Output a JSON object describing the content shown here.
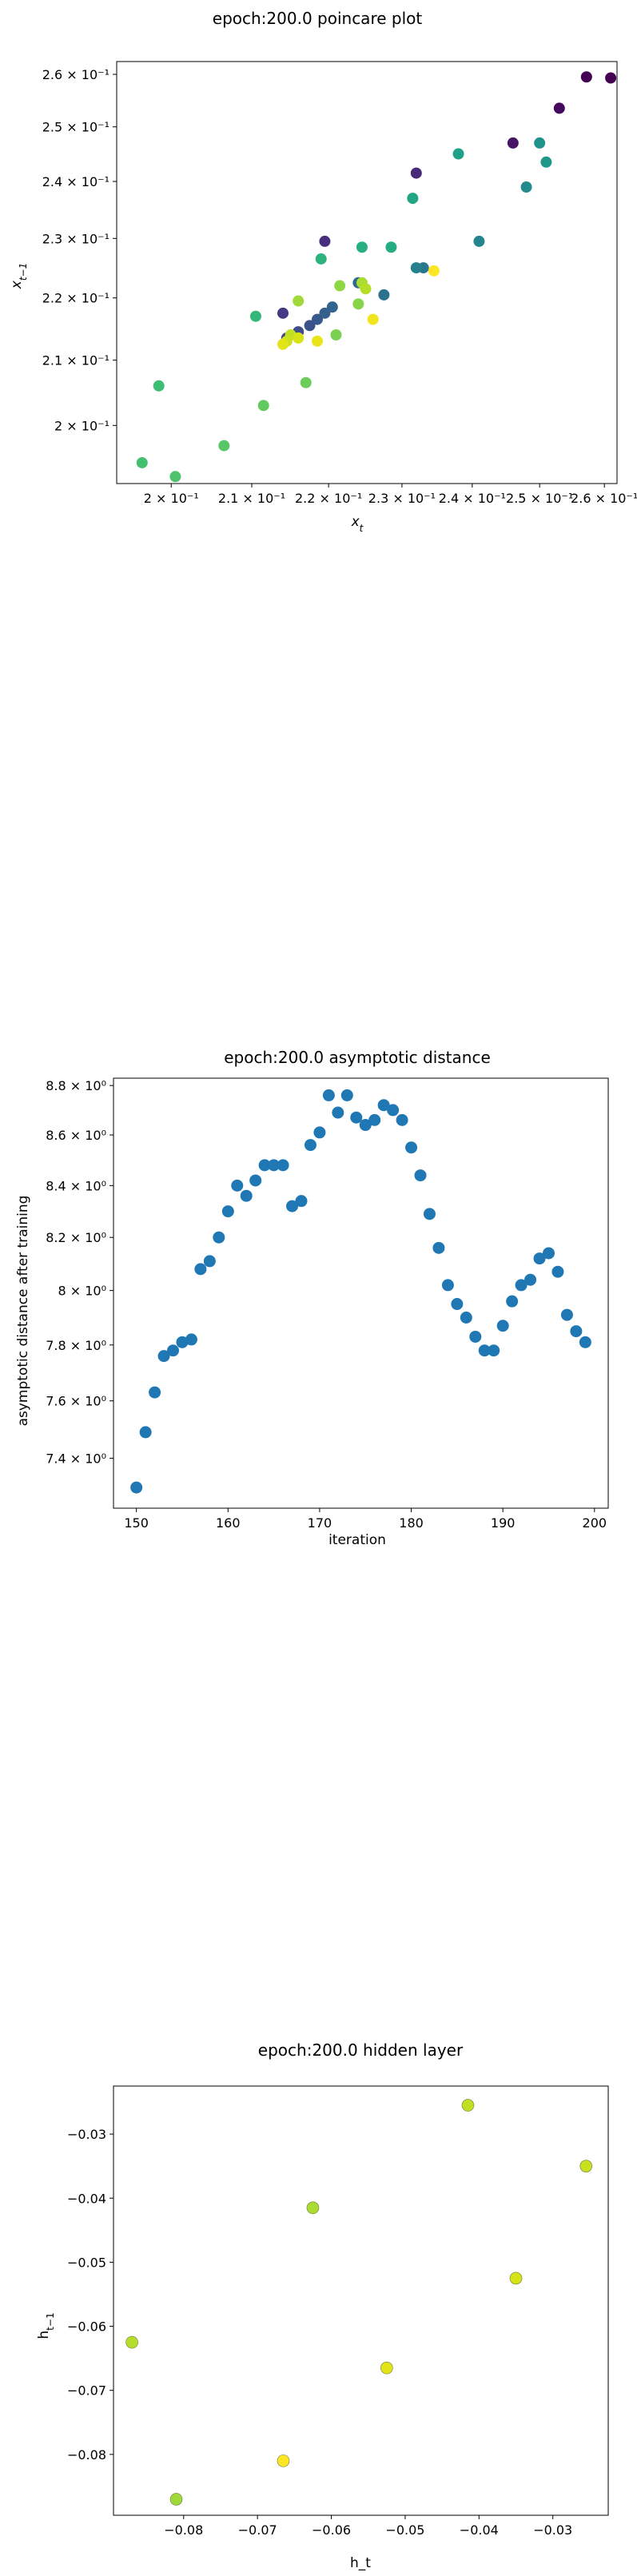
{
  "chart_data": [
    {
      "type": "scatter",
      "title": "epoch:200.0 poincare plot",
      "xlabel": "x_t",
      "ylabel": "x_{t-1}",
      "xscale": "log",
      "yscale": "log",
      "xlim": [
        0.1935,
        0.262
      ],
      "ylim": [
        0.1915,
        0.2625
      ],
      "grid": false,
      "colormap": "viridis",
      "xticks": [
        {
          "value": 0.2,
          "label": "2 × 10⁻¹"
        },
        {
          "value": 0.21,
          "label": "2.1 × 10⁻¹"
        },
        {
          "value": 0.22,
          "label": "2.2 × 10⁻¹"
        },
        {
          "value": 0.23,
          "label": "2.3 × 10⁻¹"
        },
        {
          "value": 0.24,
          "label": "2.4 × 10⁻¹"
        },
        {
          "value": 0.25,
          "label": "2.5 × 10⁻¹"
        },
        {
          "value": 0.26,
          "label": "2.6 × 10⁻¹"
        }
      ],
      "yticks": [
        {
          "value": 0.2,
          "label": "2 × 10⁻¹"
        },
        {
          "value": 0.21,
          "label": "2.1 × 10⁻¹"
        },
        {
          "value": 0.22,
          "label": "2.2 × 10⁻¹"
        },
        {
          "value": 0.23,
          "label": "2.3 × 10⁻¹"
        },
        {
          "value": 0.24,
          "label": "2.4 × 10⁻¹"
        },
        {
          "value": 0.25,
          "label": "2.5 × 10⁻¹"
        },
        {
          "value": 0.26,
          "label": "2.6 × 10⁻¹"
        }
      ],
      "points": [
        {
          "x": 0.2572,
          "y": 0.2595,
          "color": "#440154"
        },
        {
          "x": 0.261,
          "y": 0.2593,
          "color": "#440154"
        },
        {
          "x": 0.253,
          "y": 0.2535,
          "color": "#46085c"
        },
        {
          "x": 0.246,
          "y": 0.247,
          "color": "#481467"
        },
        {
          "x": 0.232,
          "y": 0.2415,
          "color": "#472b7a"
        },
        {
          "x": 0.2195,
          "y": 0.2295,
          "color": "#472f7d"
        },
        {
          "x": 0.214,
          "y": 0.2175,
          "color": "#443a83"
        },
        {
          "x": 0.2145,
          "y": 0.2135,
          "color": "#414487"
        },
        {
          "x": 0.216,
          "y": 0.2145,
          "color": "#3e4c8a"
        },
        {
          "x": 0.2175,
          "y": 0.2155,
          "color": "#3b528b"
        },
        {
          "x": 0.2185,
          "y": 0.2165,
          "color": "#38598c"
        },
        {
          "x": 0.2195,
          "y": 0.2175,
          "color": "#355f8d"
        },
        {
          "x": 0.2205,
          "y": 0.2185,
          "color": "#32658e"
        },
        {
          "x": 0.224,
          "y": 0.2225,
          "color": "#2f6b8e"
        },
        {
          "x": 0.2275,
          "y": 0.2205,
          "color": "#2c728e"
        },
        {
          "x": 0.233,
          "y": 0.225,
          "color": "#2a788e"
        },
        {
          "x": 0.232,
          "y": 0.225,
          "color": "#27808e"
        },
        {
          "x": 0.241,
          "y": 0.2295,
          "color": "#25858e"
        },
        {
          "x": 0.248,
          "y": 0.239,
          "color": "#228c8d"
        },
        {
          "x": 0.25,
          "y": 0.247,
          "color": "#20928c"
        },
        {
          "x": 0.251,
          "y": 0.2435,
          "color": "#1f988b"
        },
        {
          "x": 0.238,
          "y": 0.245,
          "color": "#1fa088"
        },
        {
          "x": 0.2315,
          "y": 0.237,
          "color": "#21a585"
        },
        {
          "x": 0.2285,
          "y": 0.2285,
          "color": "#25ac82"
        },
        {
          "x": 0.2245,
          "y": 0.2285,
          "color": "#28ae80"
        },
        {
          "x": 0.219,
          "y": 0.2265,
          "color": "#2eb37c"
        },
        {
          "x": 0.2105,
          "y": 0.217,
          "color": "#35b779"
        },
        {
          "x": 0.1985,
          "y": 0.206,
          "color": "#3dbc74"
        },
        {
          "x": 0.1965,
          "y": 0.1945,
          "color": "#46c06f"
        },
        {
          "x": 0.2005,
          "y": 0.1925,
          "color": "#4ec36b"
        },
        {
          "x": 0.2065,
          "y": 0.197,
          "color": "#56c667"
        },
        {
          "x": 0.2115,
          "y": 0.203,
          "color": "#60ca60"
        },
        {
          "x": 0.217,
          "y": 0.2065,
          "color": "#6ccd5a"
        },
        {
          "x": 0.221,
          "y": 0.214,
          "color": "#7ad151"
        },
        {
          "x": 0.224,
          "y": 0.219,
          "color": "#86d549"
        },
        {
          "x": 0.2215,
          "y": 0.222,
          "color": "#8fd744"
        },
        {
          "x": 0.216,
          "y": 0.2195,
          "color": "#9fda3a"
        },
        {
          "x": 0.2245,
          "y": 0.2225,
          "color": "#aadc32"
        },
        {
          "x": 0.225,
          "y": 0.2215,
          "color": "#b5de2b"
        },
        {
          "x": 0.215,
          "y": 0.214,
          "color": "#c2df23"
        },
        {
          "x": 0.2145,
          "y": 0.213,
          "color": "#cde11d"
        },
        {
          "x": 0.216,
          "y": 0.2135,
          "color": "#d8e219"
        },
        {
          "x": 0.214,
          "y": 0.2125,
          "color": "#e2e418"
        },
        {
          "x": 0.2185,
          "y": 0.213,
          "color": "#eae51a"
        },
        {
          "x": 0.226,
          "y": 0.2165,
          "color": "#f1e51d"
        },
        {
          "x": 0.2345,
          "y": 0.2245,
          "color": "#fde725"
        }
      ]
    },
    {
      "type": "scatter",
      "title": "epoch:200.0 asymptotic distance",
      "xlabel": "iteration",
      "ylabel": "asymptotic distance after training",
      "yscale": "log",
      "xlim": [
        147.5,
        201.5
      ],
      "ylim": [
        7.23,
        8.83
      ],
      "grid": false,
      "color": "#1f77b4",
      "xticks": [
        {
          "value": 150,
          "label": "150"
        },
        {
          "value": 160,
          "label": "160"
        },
        {
          "value": 170,
          "label": "170"
        },
        {
          "value": 180,
          "label": "180"
        },
        {
          "value": 190,
          "label": "190"
        },
        {
          "value": 200,
          "label": "200"
        }
      ],
      "yticks": [
        {
          "value": 7.4,
          "label": "7.4 × 10⁰"
        },
        {
          "value": 7.6,
          "label": "7.6 × 10⁰"
        },
        {
          "value": 7.8,
          "label": "7.8 × 10⁰"
        },
        {
          "value": 8.0,
          "label": "8 × 10⁰"
        },
        {
          "value": 8.2,
          "label": "8.2 × 10⁰"
        },
        {
          "value": 8.4,
          "label": "8.4 × 10⁰"
        },
        {
          "value": 8.6,
          "label": "8.6 × 10⁰"
        },
        {
          "value": 8.8,
          "label": "8.8 × 10⁰"
        }
      ],
      "x": [
        150,
        151,
        152,
        153,
        154,
        155,
        156,
        157,
        158,
        159,
        160,
        161,
        162,
        163,
        164,
        165,
        166,
        167,
        168,
        169,
        170,
        171,
        172,
        173,
        174,
        175,
        176,
        177,
        178,
        179,
        180,
        181,
        182,
        183,
        184,
        185,
        186,
        187,
        188,
        189,
        190,
        191,
        192,
        193,
        194,
        195,
        196,
        197,
        198,
        199
      ],
      "y": [
        7.3,
        7.49,
        7.63,
        7.76,
        7.78,
        7.81,
        7.82,
        8.08,
        8.11,
        8.2,
        8.3,
        8.4,
        8.36,
        8.42,
        8.48,
        8.48,
        8.48,
        8.32,
        8.34,
        8.56,
        8.61,
        8.76,
        8.69,
        8.76,
        8.67,
        8.64,
        8.66,
        8.72,
        8.7,
        8.66,
        8.55,
        8.44,
        8.29,
        8.16,
        8.02,
        7.95,
        7.9,
        7.83,
        7.78,
        7.78,
        7.87,
        7.96,
        8.02,
        8.04,
        8.12,
        8.14,
        8.07,
        7.91,
        7.85,
        7.81
      ]
    },
    {
      "type": "scatter",
      "title": "epoch:200.0 hidden layer",
      "xlabel": "h_t",
      "ylabel": "h_{t-1}",
      "xlim": [
        -0.0895,
        -0.0225
      ],
      "ylim": [
        -0.0895,
        -0.0225
      ],
      "grid": false,
      "xticks": [
        {
          "value": -0.08,
          "label": "−0.08"
        },
        {
          "value": -0.07,
          "label": "−0.07"
        },
        {
          "value": -0.06,
          "label": "−0.06"
        },
        {
          "value": -0.05,
          "label": "−0.05"
        },
        {
          "value": -0.04,
          "label": "−0.04"
        },
        {
          "value": -0.03,
          "label": "−0.03"
        }
      ],
      "yticks": [
        {
          "value": -0.08,
          "label": "−0.08"
        },
        {
          "value": -0.07,
          "label": "−0.07"
        },
        {
          "value": -0.06,
          "label": "−0.06"
        },
        {
          "value": -0.05,
          "label": "−0.05"
        },
        {
          "value": -0.04,
          "label": "−0.04"
        },
        {
          "value": -0.03,
          "label": "−0.03"
        }
      ],
      "points": [
        {
          "x": -0.0415,
          "y": -0.0255,
          "color": "#c2df23"
        },
        {
          "x": -0.0255,
          "y": -0.035,
          "color": "#c8e020"
        },
        {
          "x": -0.0625,
          "y": -0.0415,
          "color": "#aadc32"
        },
        {
          "x": -0.035,
          "y": -0.0525,
          "color": "#d8e219"
        },
        {
          "x": -0.087,
          "y": -0.0625,
          "color": "#b5de2b"
        },
        {
          "x": -0.0525,
          "y": -0.0665,
          "color": "#e2e418"
        },
        {
          "x": -0.0665,
          "y": -0.081,
          "color": "#fde725"
        },
        {
          "x": -0.081,
          "y": -0.087,
          "color": "#9fda3a"
        }
      ]
    }
  ]
}
